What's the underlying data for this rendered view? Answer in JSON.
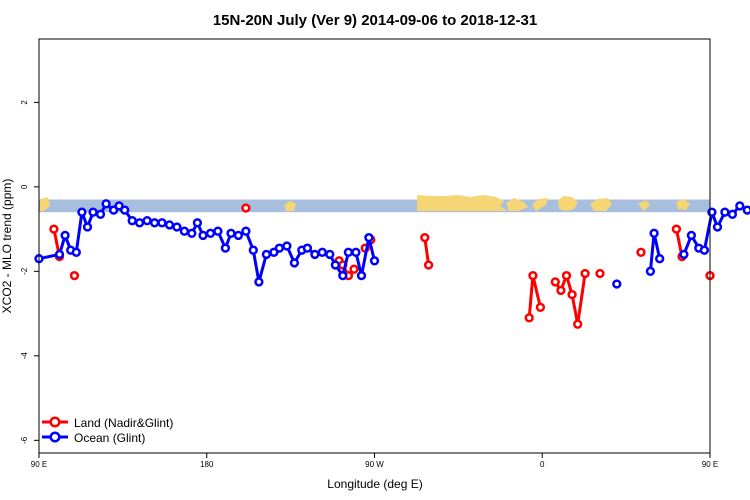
{
  "chart_data": {
    "type": "line",
    "title": "15N-20N July (Ver 9)   2014-09-06 to 2018-12-31",
    "xlabel": "Longitude (deg E)",
    "ylabel": "XCO2 - MLO trend (ppm)",
    "xlim": [
      90,
      450
    ],
    "ylim": [
      -6.3,
      3.5
    ],
    "x_ticks": [
      {
        "value": 90,
        "label": "90 E"
      },
      {
        "value": 180,
        "label": "180"
      },
      {
        "value": 270,
        "label": "90 W"
      },
      {
        "value": 360,
        "label": "0"
      },
      {
        "value": 450,
        "label": "90 E"
      },
      {
        "value": 540,
        "label": "180"
      }
    ],
    "y_ticks": [
      {
        "value": 2,
        "label": "2"
      },
      {
        "value": 0,
        "label": "0"
      },
      {
        "value": -2,
        "label": "-2"
      },
      {
        "value": -4,
        "label": "-4"
      },
      {
        "value": -6,
        "label": "-6"
      }
    ],
    "legend_position": "bottom-left",
    "land_band": {
      "y_top": -0.3,
      "y_bottom": -0.6,
      "ocean_color": "#a8bede",
      "land_color": "#f5d574"
    },
    "series": [
      {
        "name": "Land (Nadir&Glint)",
        "color": "#ff0000",
        "segments": [
          [
            [
              98,
              -1.0
            ],
            [
              101,
              -1.65
            ]
          ],
          [
            [
              109,
              -2.1
            ]
          ],
          [
            [
              201,
              -0.5
            ]
          ],
          [
            [
              251,
              -1.75
            ],
            [
              253,
              -1.85
            ],
            [
              256,
              -2.1
            ],
            [
              259,
              -1.95
            ]
          ],
          [
            [
              265,
              -1.45
            ],
            [
              268,
              -1.25
            ]
          ],
          [
            [
              297,
              -1.2
            ],
            [
              299,
              -1.85
            ]
          ],
          [
            [
              353,
              -3.1
            ],
            [
              355,
              -2.1
            ],
            [
              359,
              -2.85
            ]
          ],
          [
            [
              367,
              -2.25
            ],
            [
              370,
              -2.45
            ],
            [
              373,
              -2.1
            ],
            [
              376,
              -2.55
            ],
            [
              379,
              -3.25
            ],
            [
              383,
              -2.05
            ]
          ],
          [
            [
              391,
              -2.05
            ]
          ],
          [
            [
              413,
              -1.55
            ]
          ],
          [
            [
              432,
              -1.0
            ],
            [
              435,
              -1.65
            ]
          ],
          [
            [
              450,
              -2.1
            ]
          ]
        ]
      },
      {
        "name": "Ocean (Glint)",
        "color": "#0000ff",
        "segments": [
          [
            [
              90,
              -1.7
            ],
            [
              101,
              -1.6
            ],
            [
              104,
              -1.15
            ],
            [
              107,
              -1.5
            ],
            [
              110,
              -1.55
            ],
            [
              113,
              -0.6
            ],
            [
              116,
              -0.95
            ],
            [
              119,
              -0.6
            ],
            [
              123,
              -0.65
            ],
            [
              126,
              -0.4
            ],
            [
              130,
              -0.55
            ],
            [
              133,
              -0.45
            ],
            [
              136,
              -0.55
            ],
            [
              140,
              -0.8
            ],
            [
              144,
              -0.85
            ],
            [
              148,
              -0.8
            ],
            [
              152,
              -0.85
            ],
            [
              156,
              -0.85
            ],
            [
              160,
              -0.9
            ],
            [
              164,
              -0.95
            ],
            [
              168,
              -1.05
            ],
            [
              172,
              -1.1
            ],
            [
              175,
              -0.85
            ],
            [
              178,
              -1.15
            ],
            [
              182,
              -1.1
            ],
            [
              186,
              -1.05
            ],
            [
              190,
              -1.45
            ],
            [
              193,
              -1.1
            ],
            [
              197,
              -1.15
            ],
            [
              201,
              -1.05
            ],
            [
              205,
              -1.5
            ],
            [
              208,
              -2.25
            ],
            [
              212,
              -1.6
            ],
            [
              216,
              -1.55
            ],
            [
              219,
              -1.45
            ],
            [
              223,
              -1.4
            ],
            [
              227,
              -1.8
            ],
            [
              231,
              -1.5
            ],
            [
              234,
              -1.45
            ],
            [
              238,
              -1.6
            ],
            [
              242,
              -1.55
            ],
            [
              246,
              -1.6
            ],
            [
              249,
              -1.85
            ],
            [
              253,
              -2.1
            ],
            [
              256,
              -1.55
            ],
            [
              260,
              -1.55
            ],
            [
              263,
              -2.1
            ],
            [
              267,
              -1.2
            ],
            [
              270,
              -1.75
            ]
          ],
          [
            [
              400,
              -2.3
            ]
          ],
          [
            [
              418,
              -2.0
            ],
            [
              420,
              -1.1
            ],
            [
              423,
              -1.7
            ]
          ],
          [
            [
              436,
              -1.6
            ],
            [
              440,
              -1.15
            ],
            [
              444,
              -1.45
            ],
            [
              447,
              -1.5
            ],
            [
              451,
              -0.6
            ],
            [
              454,
              -0.95
            ],
            [
              458,
              -0.6
            ],
            [
              462,
              -0.65
            ],
            [
              466,
              -0.45
            ],
            [
              470,
              -0.55
            ],
            [
              474,
              -0.45
            ],
            [
              478,
              -0.55
            ],
            [
              482,
              -0.8
            ],
            [
              486,
              -0.85
            ],
            [
              490,
              -0.8
            ]
          ]
        ]
      }
    ]
  }
}
